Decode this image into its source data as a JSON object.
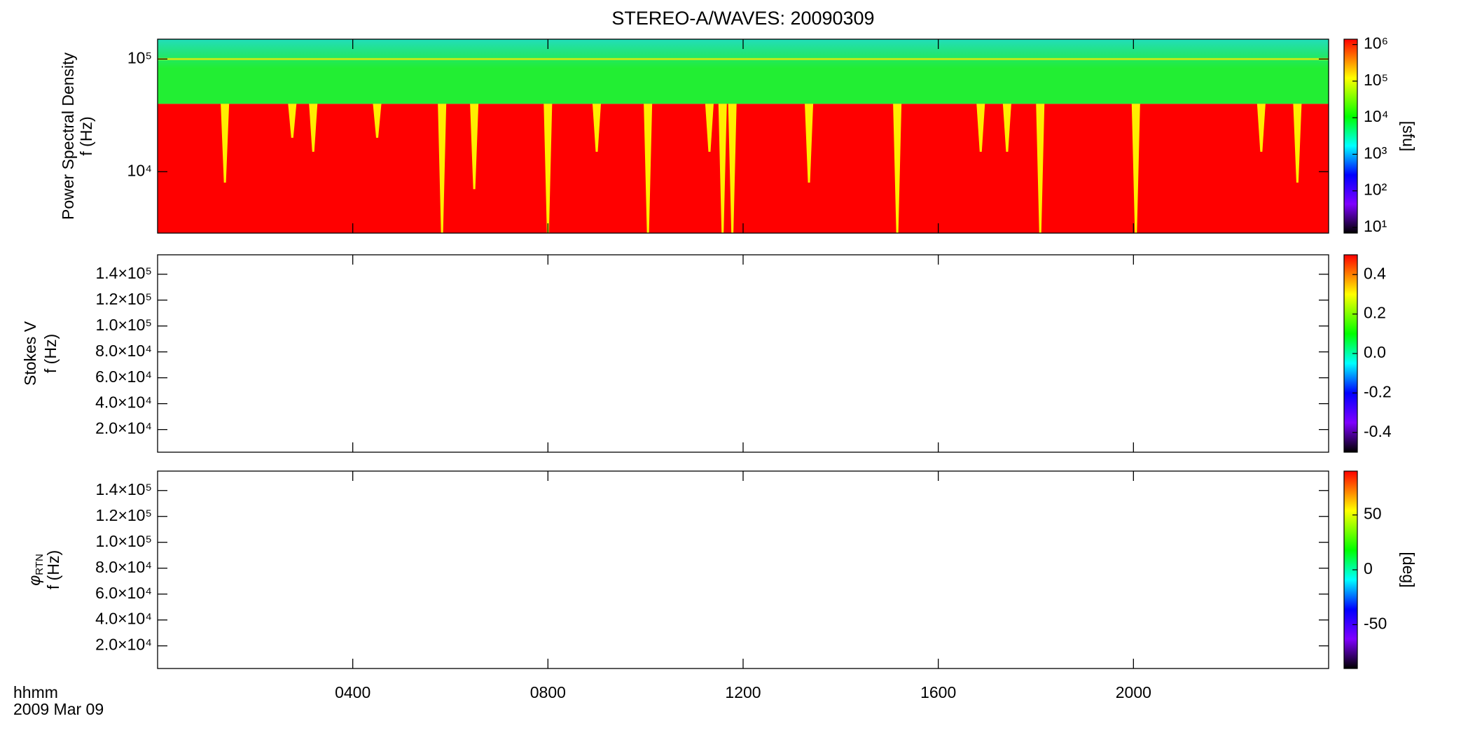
{
  "chart_data": [
    {
      "type": "spectrogram",
      "title": "STEREO-A/WAVES: 20090309",
      "ylabel": [
        "Power Spectral Density",
        "f (Hz)"
      ],
      "ylog": true,
      "ylim": [
        2850,
        150000
      ],
      "yticks": [
        {
          "value": 10000,
          "label": "10⁴"
        },
        {
          "value": 100000,
          "label": "10⁵"
        }
      ],
      "xlim": [
        0,
        24
      ],
      "xticks": [
        4,
        8,
        12,
        16,
        20
      ],
      "colormap": "rainbow",
      "clog": true,
      "clim": [
        7,
        1400000
      ],
      "cticks": [
        {
          "value": 10,
          "label": "10¹"
        },
        {
          "value": 100,
          "label": "10²"
        },
        {
          "value": 1000,
          "label": "10³"
        },
        {
          "value": 10000,
          "label": "10⁴"
        },
        {
          "value": 100000,
          "label": "10⁵"
        },
        {
          "value": 1000000,
          "label": "10⁶"
        }
      ],
      "clabel": "[sfu]",
      "cutoff": 40000,
      "line_freq": 100000,
      "below_color": "#ff0000",
      "above_color": "#22ee33",
      "top_color": "#22ddbb",
      "streak_color": "#ffee00",
      "streaks": {
        "x": [
          1.38,
          2.76,
          3.19,
          4.5,
          5.83,
          6.49,
          8.0,
          9.0,
          10.05,
          11.31,
          11.58,
          11.78,
          13.35,
          15.16,
          16.87,
          17.41,
          18.09,
          20.05,
          22.62,
          23.36
        ],
        "depth": [
          8000,
          20000,
          15000,
          20000,
          2850,
          7000,
          2850,
          15000,
          2850,
          15000,
          2850,
          2850,
          8000,
          2850,
          15000,
          15000,
          2850,
          2850,
          15000,
          8000
        ]
      }
    },
    {
      "type": "spectrogram",
      "ylabel": [
        "Stokes V",
        "f (Hz)"
      ],
      "ylim": [
        2500,
        155000
      ],
      "yticks": [
        {
          "value": 20000,
          "label": "2.0×10⁴"
        },
        {
          "value": 40000,
          "label": "4.0×10⁴"
        },
        {
          "value": 60000,
          "label": "6.0×10⁴"
        },
        {
          "value": 80000,
          "label": "8.0×10⁴"
        },
        {
          "value": 100000,
          "label": "1.0×10⁵"
        },
        {
          "value": 120000,
          "label": "1.2×10⁵"
        },
        {
          "value": 140000,
          "label": "1.4×10⁵"
        }
      ],
      "xlim": [
        0,
        24
      ],
      "xticks": [
        4,
        8,
        12,
        16,
        20
      ],
      "colormap": "rainbow",
      "clim": [
        -0.5,
        0.5
      ],
      "cticks": [
        -0.4,
        -0.2,
        {
          "value": 0,
          "label": "0.0"
        },
        0.2,
        0.4
      ]
    },
    {
      "type": "spectrogram",
      "ylabel_symbol": "φ",
      "ylabel_subscript": "RTN",
      "ylabel": [
        "f (Hz)"
      ],
      "ylim": [
        2500,
        155000
      ],
      "yticks": [
        {
          "value": 20000,
          "label": "2.0×10⁴"
        },
        {
          "value": 40000,
          "label": "4.0×10⁴"
        },
        {
          "value": 60000,
          "label": "6.0×10⁴"
        },
        {
          "value": 80000,
          "label": "8.0×10⁴"
        },
        {
          "value": 100000,
          "label": "1.0×10⁵"
        },
        {
          "value": 120000,
          "label": "1.2×10⁵"
        },
        {
          "value": 140000,
          "label": "1.4×10⁵"
        }
      ],
      "xlim": [
        0,
        24
      ],
      "xticks": [
        {
          "value": 4,
          "label": "0400"
        },
        {
          "value": 8,
          "label": "0800"
        },
        {
          "value": 12,
          "label": "1200"
        },
        {
          "value": 16,
          "label": "1600"
        },
        {
          "value": 20,
          "label": "2000"
        }
      ],
      "xlabel": [
        "hhmm",
        "2009 Mar 09"
      ],
      "colormap": "rainbow",
      "clim": [
        -90,
        90
      ],
      "cticks": [
        -50,
        0,
        50
      ],
      "clabel": "[deg]"
    }
  ]
}
